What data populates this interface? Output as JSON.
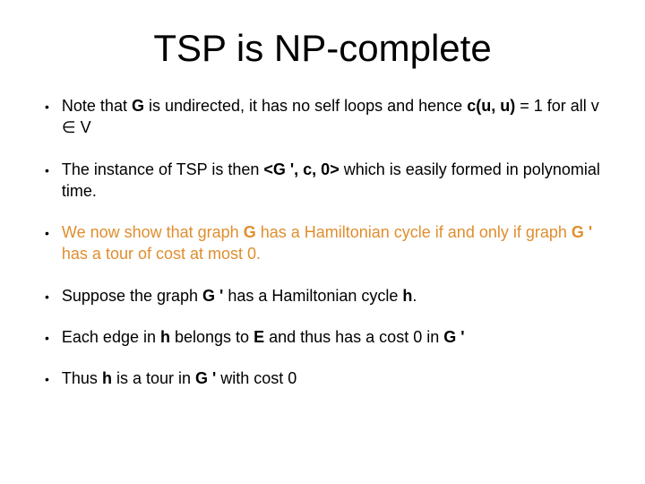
{
  "title": "TSP is NP-complete",
  "bullets": [
    {
      "highlighted": false,
      "parts": [
        {
          "text": "Note that ",
          "bold": false
        },
        {
          "text": "G",
          "bold": true
        },
        {
          "text": " is undirected, it has no self loops and hence ",
          "bold": false
        },
        {
          "text": "c(u, u)",
          "bold": true
        },
        {
          "text": " = 1 for all v ∈  V",
          "bold": false
        }
      ]
    },
    {
      "highlighted": false,
      "parts": [
        {
          "text": "The instance of TSP is then ",
          "bold": false
        },
        {
          "text": "<G ', c, 0>",
          "bold": true
        },
        {
          "text": " which is easily formed in polynomial time.",
          "bold": false
        }
      ]
    },
    {
      "highlighted": true,
      "parts": [
        {
          "text": "We now show that graph ",
          "bold": false
        },
        {
          "text": "G",
          "bold": true
        },
        {
          "text": " has a Hamiltonian cycle if and only if graph ",
          "bold": false
        },
        {
          "text": "G '",
          "bold": true
        },
        {
          "text": " has a tour of cost at most 0.",
          "bold": false
        }
      ]
    },
    {
      "highlighted": false,
      "parts": [
        {
          "text": "Suppose the graph ",
          "bold": false
        },
        {
          "text": "G '",
          "bold": true
        },
        {
          "text": " has a Hamiltonian cycle ",
          "bold": false
        },
        {
          "text": "h",
          "bold": true
        },
        {
          "text": ".",
          "bold": false
        }
      ]
    },
    {
      "highlighted": false,
      "parts": [
        {
          "text": "Each edge in ",
          "bold": false
        },
        {
          "text": "h",
          "bold": true
        },
        {
          "text": " belongs to ",
          "bold": false
        },
        {
          "text": "E",
          "bold": true
        },
        {
          "text": " and thus has a cost 0 in ",
          "bold": false
        },
        {
          "text": "G '",
          "bold": true
        }
      ]
    },
    {
      "highlighted": false,
      "parts": [
        {
          "text": "Thus ",
          "bold": false
        },
        {
          "text": "h",
          "bold": true
        },
        {
          "text": " is a tour in ",
          "bold": false
        },
        {
          "text": "G '",
          "bold": true
        },
        {
          "text": " with cost 0",
          "bold": false
        }
      ]
    }
  ]
}
